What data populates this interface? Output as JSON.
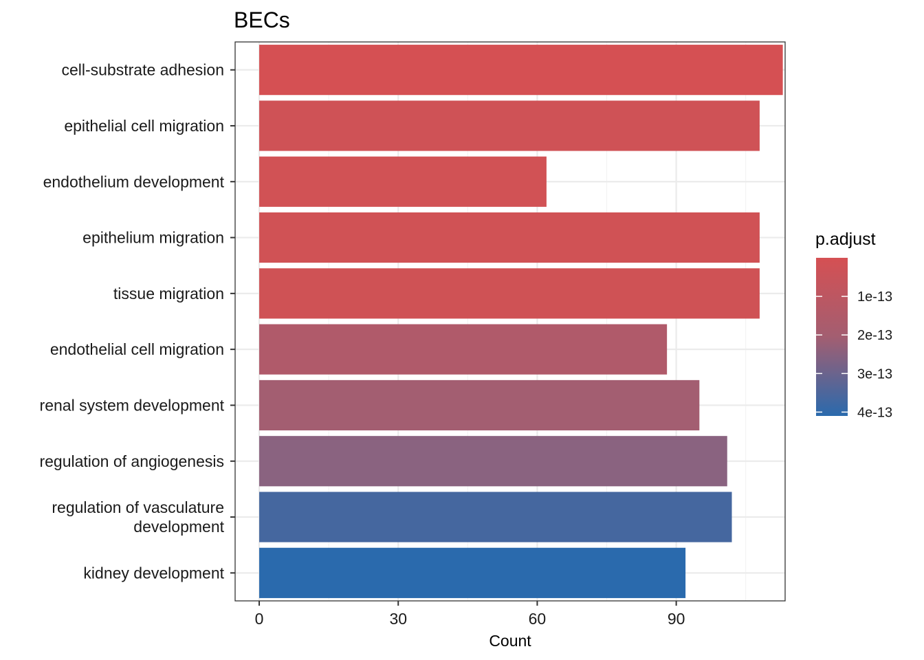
{
  "chart_data": {
    "type": "bar",
    "orientation": "horizontal",
    "title": "BECs",
    "xlabel": "Count",
    "ylabel": "",
    "xlim": [
      -5.2,
      113.5
    ],
    "x_ticks": [
      0,
      30,
      60,
      90
    ],
    "grid": true,
    "categories": [
      [
        "cell-substrate adhesion"
      ],
      [
        "epithelial cell migration"
      ],
      [
        "endothelium development"
      ],
      [
        "epithelium migration"
      ],
      [
        "tissue migration"
      ],
      [
        "endothelial cell migration"
      ],
      [
        "renal system development"
      ],
      [
        "regulation of angiogenesis"
      ],
      [
        "regulation of vasculature",
        "development"
      ],
      [
        "kidney development"
      ]
    ],
    "values": [
      113,
      108,
      62,
      108,
      108,
      88,
      95,
      101,
      102,
      92
    ],
    "colors": [
      "#d55053",
      "#cf5256",
      "#d15255",
      "#d05255",
      "#cf5255",
      "#b05a6a",
      "#a35e71",
      "#8a6380",
      "#45679f",
      "#2a6aad"
    ],
    "legend": {
      "title": "p.adjust",
      "placement": "right",
      "scale_min": 0,
      "scale_max": 4.1e-13,
      "gradient_colors": [
        "#d55053",
        "#a35e71",
        "#2a6aad"
      ],
      "breaks": [
        {
          "label": "1e-13",
          "value": 1e-13
        },
        {
          "label": "2e-13",
          "value": 2e-13
        },
        {
          "label": "3e-13",
          "value": 3e-13
        },
        {
          "label": "4e-13",
          "value": 4e-13
        }
      ]
    }
  }
}
